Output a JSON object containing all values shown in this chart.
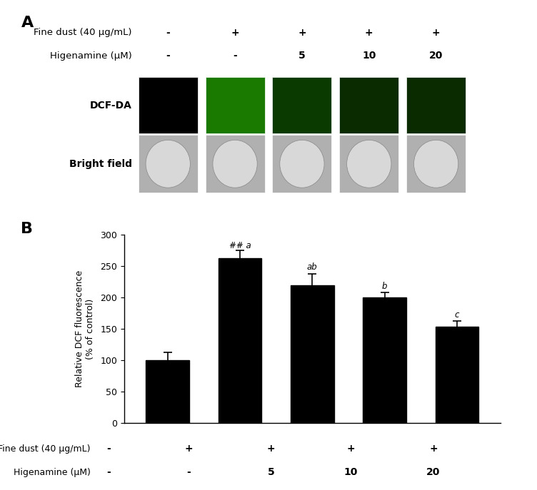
{
  "panel_A_label": "A",
  "panel_B_label": "B",
  "fine_dust_label": "Fine dust (40 μg/mL)",
  "higenamine_label": "Higenamine (μM)",
  "fine_dust_values": [
    "-",
    "+",
    "+",
    "+",
    "+"
  ],
  "higenamine_values": [
    "-",
    "-",
    "5",
    "10",
    "20"
  ],
  "dcf_label": "DCF-DA",
  "bright_label": "Bright field",
  "n_cols": 5,
  "bar_values": [
    100,
    263,
    220,
    200,
    153
  ],
  "bar_errors": [
    12,
    12,
    18,
    8,
    10
  ],
  "bar_color": "#000000",
  "ylabel": "Relative DCF fluorescence\n(% of control)",
  "ylim": [
    0,
    300
  ],
  "yticks": [
    0,
    50,
    100,
    150,
    200,
    250,
    300
  ],
  "background_color": "#ffffff",
  "dcf_colors": [
    "#000000",
    "#1a7a00",
    "#0a3a00",
    "#0a2a00",
    "#0a2a00"
  ]
}
